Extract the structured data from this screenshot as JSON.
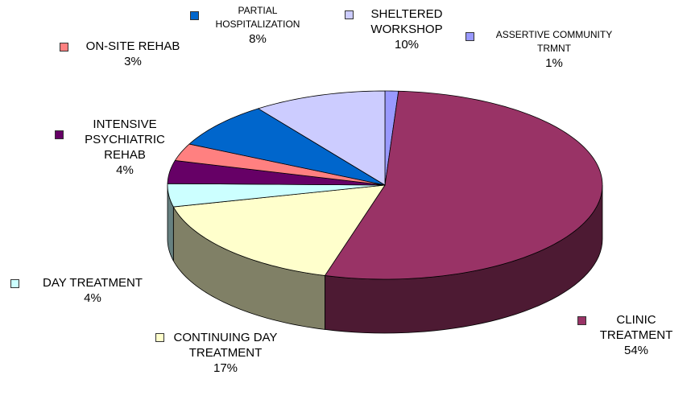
{
  "chart_data": {
    "type": "pie",
    "categories": [
      "ASSERTIVE COMMUNITY TRMNT",
      "CLINIC TREATMENT",
      "CONTINUING DAY TREATMENT",
      "DAY TREATMENT",
      "INTENSIVE PSYCHIATRIC REHAB",
      "ON-SITE REHAB",
      "PARTIAL HOSPITALIZATION",
      "SHELTERED WORKSHOP"
    ],
    "values": [
      1,
      54,
      17,
      4,
      4,
      3,
      8,
      10
    ],
    "value_labels": [
      "1%",
      "54%",
      "17%",
      "4%",
      "4%",
      "3%",
      "8%",
      "10%"
    ],
    "colors": [
      "#9999ff",
      "#993366",
      "#ffffcc",
      "#ccffff",
      "#660066",
      "#ff8080",
      "#0066cc",
      "#ccccff"
    ]
  }
}
